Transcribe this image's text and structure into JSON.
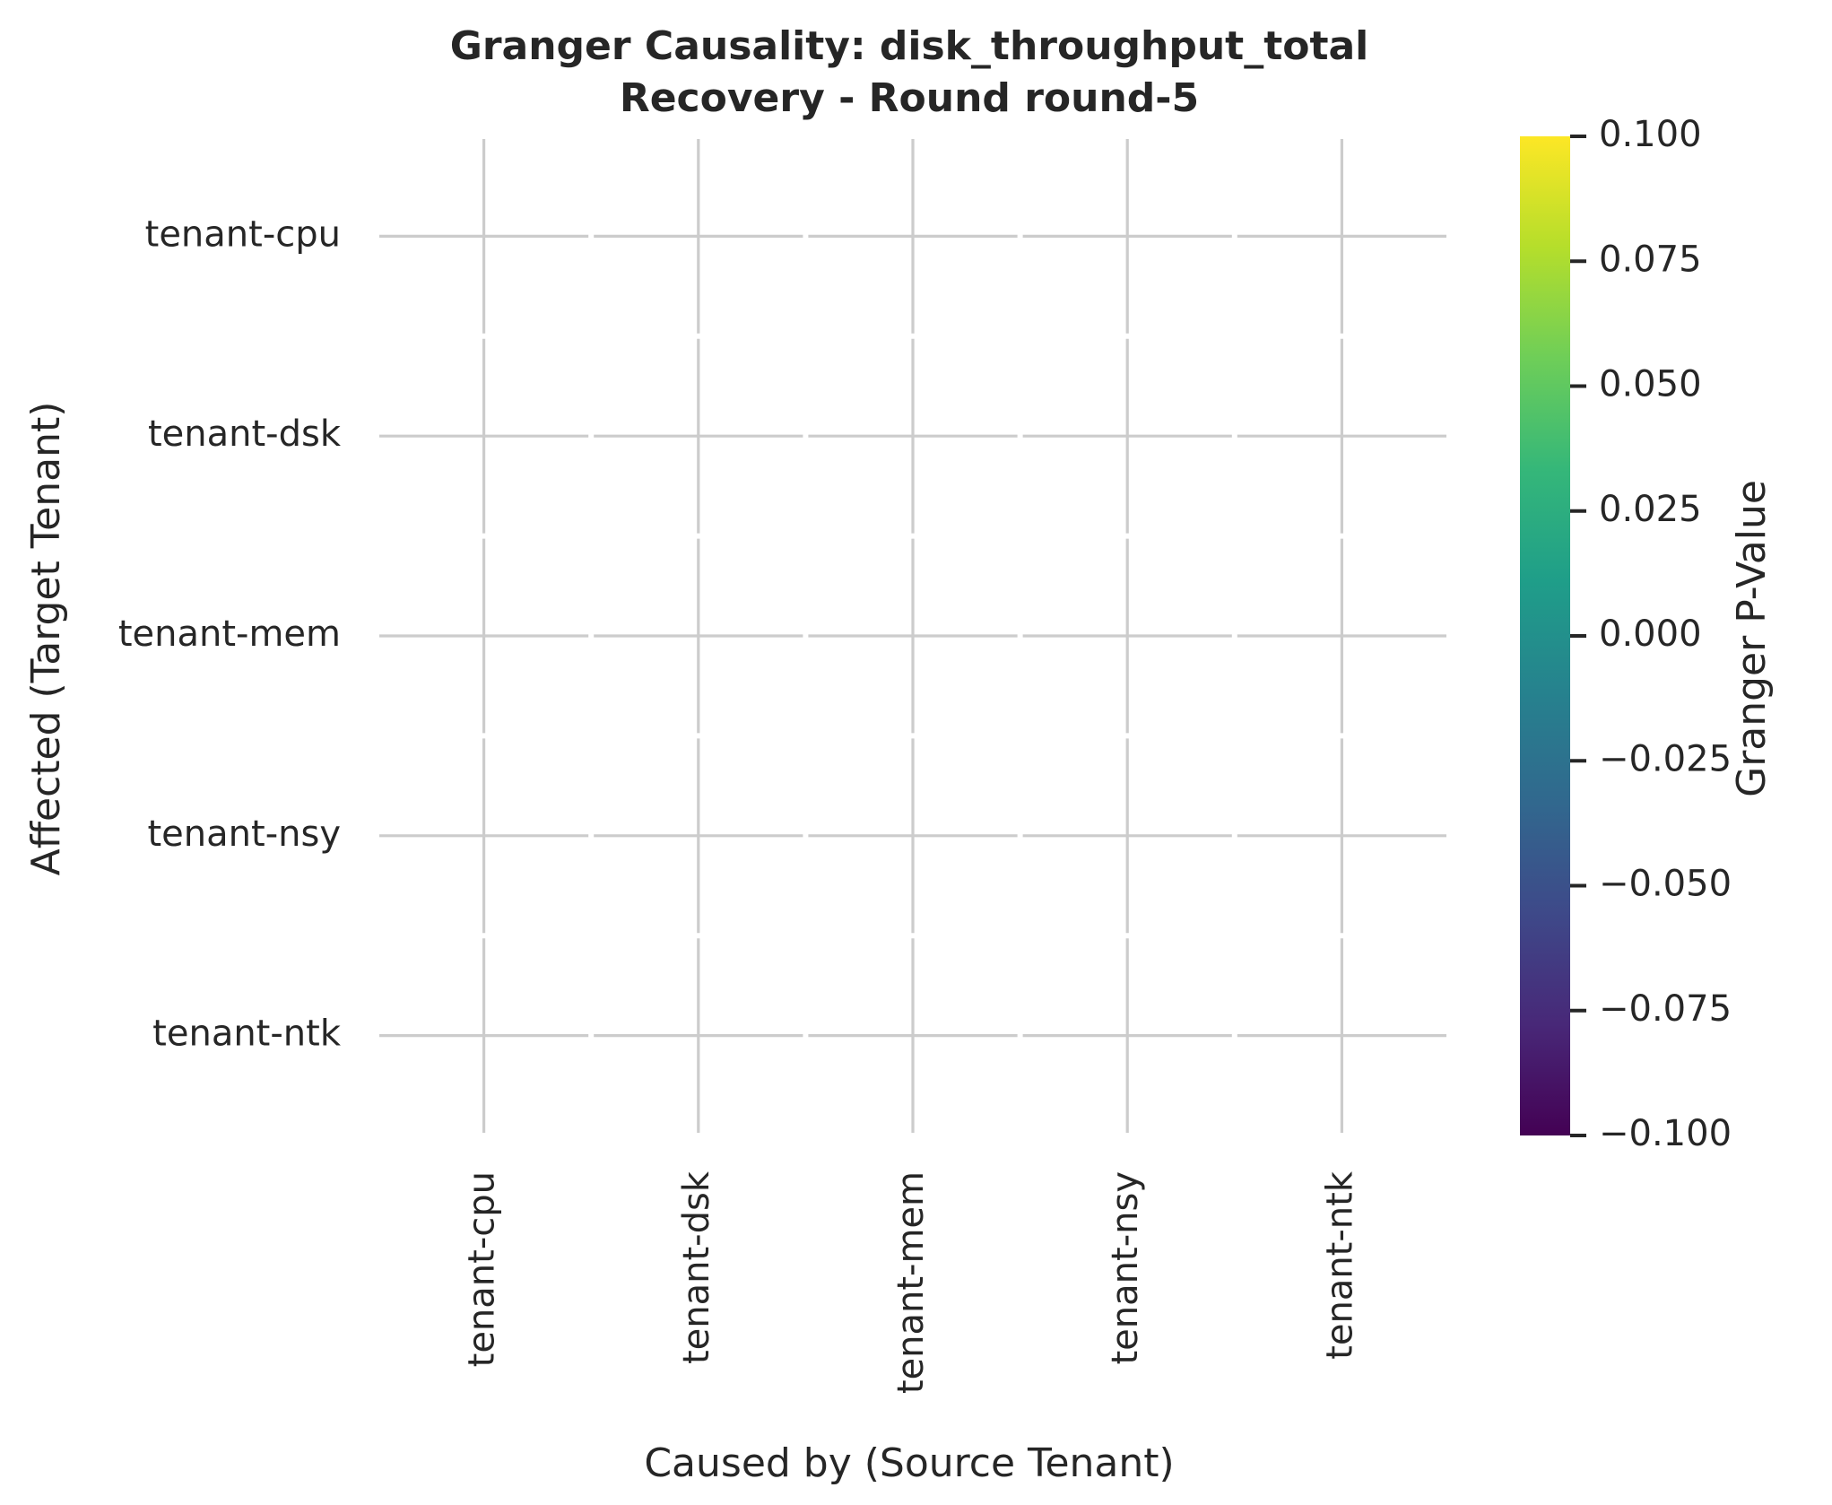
{
  "chart_data": {
    "type": "heatmap",
    "title": "Granger Causality: disk_throughput_total",
    "subtitle": "Recovery - Round round-5",
    "xlabel": "Caused by (Source Tenant)",
    "ylabel": "Affected (Target Tenant)",
    "x_categories": [
      "tenant-cpu",
      "tenant-dsk",
      "tenant-mem",
      "tenant-nsy",
      "tenant-ntk"
    ],
    "y_categories": [
      "tenant-cpu",
      "tenant-dsk",
      "tenant-mem",
      "tenant-nsy",
      "tenant-ntk"
    ],
    "values": [
      [
        null,
        null,
        null,
        null,
        null
      ],
      [
        null,
        null,
        null,
        null,
        null
      ],
      [
        null,
        null,
        null,
        null,
        null
      ],
      [
        null,
        null,
        null,
        null,
        null
      ],
      [
        null,
        null,
        null,
        null,
        null
      ]
    ],
    "grid": true,
    "colorbar": {
      "label": "Granger P-Value",
      "colormap": "viridis",
      "range": [
        -0.1,
        0.1
      ],
      "ticks": [
        "0.100",
        "0.075",
        "0.050",
        "0.025",
        "0.000",
        "−0.025",
        "−0.050",
        "−0.075",
        "−0.100"
      ],
      "tick_values": [
        0.1,
        0.075,
        0.05,
        0.025,
        0.0,
        -0.025,
        -0.05,
        -0.075,
        -0.1
      ],
      "colors": [
        "#440154",
        "#482878",
        "#3e4989",
        "#31688e",
        "#26828e",
        "#1f9e89",
        "#35b779",
        "#6ece58",
        "#b5de2b",
        "#fde725"
      ]
    },
    "grid_color": "#cccccc",
    "text_color": "#262626"
  }
}
